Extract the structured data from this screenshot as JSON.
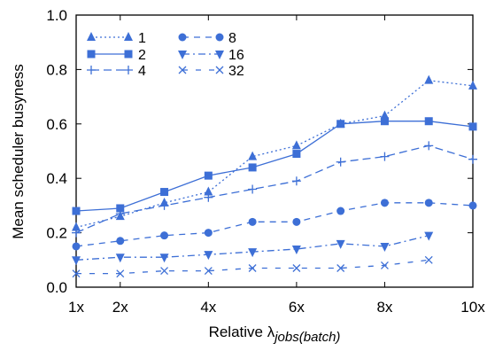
{
  "chart_data": {
    "type": "line",
    "title": "",
    "xlabel_prefix": "Relative λ",
    "xlabel_subscript": "jobs(batch)",
    "ylabel": "Mean scheduler busyness",
    "x_ticks": [
      1,
      2,
      4,
      6,
      8,
      10
    ],
    "x_tick_labels": [
      "1x",
      "2x",
      "4x",
      "6x",
      "8x",
      "10x"
    ],
    "y_ticks": [
      0.0,
      0.2,
      0.4,
      0.6,
      0.8,
      1.0
    ],
    "y_tick_labels": [
      "0.0",
      "0.2",
      "0.4",
      "0.6",
      "0.8",
      "1.0"
    ],
    "xlim": [
      1,
      10
    ],
    "ylim": [
      0,
      1.0
    ],
    "grid": false,
    "legend_position": "top-left",
    "color": "#3d6fd6",
    "series": [
      {
        "name": "1",
        "marker": "triangle-up",
        "dash": "dotted",
        "x": [
          1,
          2,
          3,
          4,
          5,
          6,
          7,
          8,
          9,
          10
        ],
        "y": [
          0.22,
          0.26,
          0.31,
          0.35,
          0.48,
          0.52,
          0.6,
          0.63,
          0.76,
          0.74
        ]
      },
      {
        "name": "2",
        "marker": "square",
        "dash": "solid",
        "x": [
          1,
          2,
          3,
          4,
          5,
          6,
          7,
          8,
          9,
          10
        ],
        "y": [
          0.28,
          0.29,
          0.35,
          0.41,
          0.44,
          0.49,
          0.6,
          0.61,
          0.61,
          0.59
        ]
      },
      {
        "name": "4",
        "marker": "plus",
        "dash": "long-dash",
        "x": [
          1,
          2,
          3,
          4,
          5,
          6,
          7,
          8,
          9,
          10
        ],
        "y": [
          0.2,
          0.27,
          0.3,
          0.33,
          0.36,
          0.39,
          0.46,
          0.48,
          0.52,
          0.47
        ]
      },
      {
        "name": "8",
        "marker": "circle",
        "dash": "dash",
        "x": [
          1,
          2,
          3,
          4,
          5,
          6,
          7,
          8,
          9,
          10
        ],
        "y": [
          0.15,
          0.17,
          0.19,
          0.2,
          0.24,
          0.24,
          0.28,
          0.31,
          0.31,
          0.3
        ]
      },
      {
        "name": "16",
        "marker": "triangle-down",
        "dash": "dash-dot",
        "x": [
          1,
          2,
          3,
          4,
          5,
          6,
          7,
          8,
          9
        ],
        "y": [
          0.1,
          0.11,
          0.11,
          0.12,
          0.13,
          0.14,
          0.16,
          0.15,
          0.19
        ]
      },
      {
        "name": "32",
        "marker": "x",
        "dash": "sparse-dash",
        "x": [
          1,
          2,
          3,
          4,
          5,
          6,
          7,
          8,
          9
        ],
        "y": [
          0.05,
          0.05,
          0.06,
          0.06,
          0.07,
          0.07,
          0.07,
          0.08,
          0.1
        ]
      }
    ]
  }
}
